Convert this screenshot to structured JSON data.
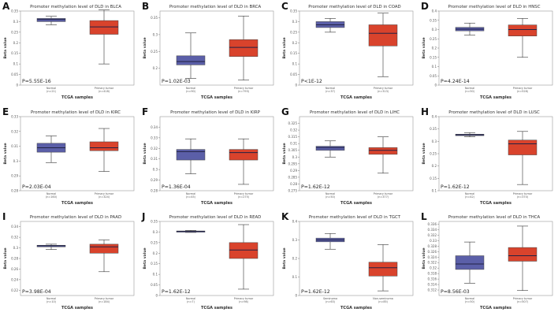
{
  "figure": {
    "normal_color": "#5b5fa8",
    "tumor_color": "#d9432c",
    "median_color": "#222244"
  },
  "chart_data": [
    {
      "type": "boxplot",
      "letter": "A",
      "title": "Promoter methylation level of DLD in BLCA",
      "xlabel": "TCGA samples",
      "ylabel": "Beta value",
      "pvalue": "P=5.55E-16",
      "ylim": [
        0,
        0.35
      ],
      "yticks": [
        "0",
        "0.05",
        "0.1",
        "0.15",
        "0.2",
        "0.25",
        "0.3",
        "0.35"
      ],
      "yticks_values": [
        0,
        0.05,
        0.1,
        0.15,
        0.2,
        0.25,
        0.3,
        0.35
      ],
      "groups": [
        {
          "name": "Normal",
          "n": "(n=21)",
          "min": 0.285,
          "q1": 0.3,
          "median": 0.31,
          "q3": 0.315,
          "max": 0.325
        },
        {
          "name": "Primary tumor",
          "n": "(n=418)",
          "min": 0.1,
          "q1": 0.24,
          "median": 0.275,
          "q3": 0.305,
          "max": 0.355
        }
      ]
    },
    {
      "type": "boxplot",
      "letter": "B",
      "title": "Promoter methylation level of DLD in BRCA",
      "xlabel": "TCGA samples",
      "ylabel": "Beta value",
      "pvalue": "P=1.02E-03",
      "ylim": [
        0.15,
        0.37
      ],
      "yticks": [
        "0.2",
        "0.25",
        "0.3",
        "0.35"
      ],
      "yticks_values": [
        0.2,
        0.25,
        0.3,
        0.35
      ],
      "groups": [
        {
          "name": "Normal",
          "n": "(n=90)",
          "min": 0.17,
          "q1": 0.21,
          "median": 0.22,
          "q3": 0.237,
          "max": 0.305
        },
        {
          "name": "Primary tumor",
          "n": "(n=793)",
          "min": 0.165,
          "q1": 0.235,
          "median": 0.262,
          "q3": 0.285,
          "max": 0.355
        }
      ]
    },
    {
      "type": "boxplot",
      "letter": "C",
      "title": "Promoter methylation level of DLD in COAD",
      "xlabel": "TCGA samples",
      "ylabel": "Beta value",
      "pvalue": "P<1E-12",
      "ylim": [
        0,
        0.35
      ],
      "yticks": [
        "0",
        "0.05",
        "0.1",
        "0.15",
        "0.2",
        "0.25",
        "0.3",
        "0.35"
      ],
      "yticks_values": [
        0,
        0.05,
        0.1,
        0.15,
        0.2,
        0.25,
        0.3,
        0.35
      ],
      "groups": [
        {
          "name": "Normal",
          "n": "(n=37)",
          "min": 0.25,
          "q1": 0.272,
          "median": 0.285,
          "q3": 0.3,
          "max": 0.315
        },
        {
          "name": "Primary tumor",
          "n": "(n=313)",
          "min": 0.04,
          "q1": 0.185,
          "median": 0.245,
          "q3": 0.285,
          "max": 0.34
        }
      ]
    },
    {
      "type": "boxplot",
      "letter": "D",
      "title": "Promoter methylation level of DLD in HNSC",
      "xlabel": "TCGA samples",
      "ylabel": "Beta value",
      "pvalue": "P=4.24E-14",
      "ylim": [
        0,
        0.4
      ],
      "yticks": [
        "0",
        "0.05",
        "0.1",
        "0.15",
        "0.2",
        "0.25",
        "0.3",
        "0.35",
        "0.4"
      ],
      "yticks_values": [
        0,
        0.05,
        0.1,
        0.15,
        0.2,
        0.25,
        0.3,
        0.35,
        0.4
      ],
      "groups": [
        {
          "name": "Normal",
          "n": "(n=50)",
          "min": 0.27,
          "q1": 0.293,
          "median": 0.302,
          "q3": 0.312,
          "max": 0.335
        },
        {
          "name": "Primary tumor",
          "n": "(n=528)",
          "min": 0.15,
          "q1": 0.265,
          "median": 0.3,
          "q3": 0.325,
          "max": 0.36
        }
      ]
    },
    {
      "type": "boxplot",
      "letter": "E",
      "title": "Promoter methylation level of DLD in KIRC",
      "xlabel": "TCGA samples",
      "ylabel": "Beta value",
      "pvalue": "P=2.03E-04",
      "ylim": [
        0.28,
        0.33
      ],
      "yticks": [
        "0.28",
        "0.29",
        "0.3",
        "0.31",
        "0.32",
        "0.33"
      ],
      "yticks_values": [
        0.28,
        0.29,
        0.3,
        0.31,
        0.32,
        0.33
      ],
      "groups": [
        {
          "name": "Normal",
          "n": "(n=160)",
          "min": 0.299,
          "q1": 0.306,
          "median": 0.309,
          "q3": 0.312,
          "max": 0.317
        },
        {
          "name": "Primary tumor",
          "n": "(n=324)",
          "min": 0.293,
          "q1": 0.307,
          "median": 0.309,
          "q3": 0.313,
          "max": 0.322
        }
      ]
    },
    {
      "type": "boxplot",
      "letter": "F",
      "title": "Promoter methylation level of DLD in KIRP",
      "xlabel": "TCGA samples",
      "ylabel": "Beta value",
      "pvalue": "P=1.36E-04",
      "ylim": [
        0.28,
        0.35
      ],
      "yticks": [
        "0.28",
        "0.29",
        "0.3",
        "0.31",
        "0.32",
        "0.33",
        "0.34"
      ],
      "yticks_values": [
        0.28,
        0.29,
        0.3,
        0.31,
        0.32,
        0.33,
        0.34
      ],
      "groups": [
        {
          "name": "Normal",
          "n": "(n=45)",
          "min": 0.296,
          "q1": 0.309,
          "median": 0.317,
          "q3": 0.319,
          "max": 0.329
        },
        {
          "name": "Primary tumor",
          "n": "(n=275)",
          "min": 0.286,
          "q1": 0.309,
          "median": 0.316,
          "q3": 0.319,
          "max": 0.329
        }
      ]
    },
    {
      "type": "boxplot",
      "letter": "G",
      "title": "Promoter methylation level of DLD in LIHC",
      "xlabel": "TCGA samples",
      "ylabel": "Beta value",
      "pvalue": "P=1.62E-12",
      "ylim": [
        0.275,
        0.33
      ],
      "yticks": [
        "0.275",
        "0.28",
        "0.285",
        "0.29",
        "0.295",
        "0.3",
        "0.305",
        "0.31",
        "0.315",
        "0.32",
        "0.325"
      ],
      "yticks_values": [
        0.275,
        0.28,
        0.285,
        0.29,
        0.295,
        0.3,
        0.305,
        0.31,
        0.315,
        0.32,
        0.325
      ],
      "groups": [
        {
          "name": "Normal",
          "n": "(n=50)",
          "min": 0.3,
          "q1": 0.305,
          "median": 0.307,
          "q3": 0.308,
          "max": 0.312
        },
        {
          "name": "Primary tumor",
          "n": "(n=377)",
          "min": 0.288,
          "q1": 0.302,
          "median": 0.305,
          "q3": 0.307,
          "max": 0.315
        }
      ]
    },
    {
      "type": "boxplot",
      "letter": "H",
      "title": "Promoter methylation level of DLD in LUSC",
      "xlabel": "TCGA samples",
      "ylabel": "Beta value",
      "pvalue": "P=1.62E-12",
      "ylim": [
        0.1,
        0.4
      ],
      "yticks": [
        "0.1",
        "0.15",
        "0.2",
        "0.25",
        "0.3",
        "0.35",
        "0.4"
      ],
      "yticks_values": [
        0.1,
        0.15,
        0.2,
        0.25,
        0.3,
        0.35,
        0.4
      ],
      "groups": [
        {
          "name": "Normal",
          "n": "(n=42)",
          "min": 0.318,
          "q1": 0.323,
          "median": 0.326,
          "q3": 0.329,
          "max": 0.335
        },
        {
          "name": "Primary tumor",
          "n": "(n=370)",
          "min": 0.125,
          "q1": 0.245,
          "median": 0.29,
          "q3": 0.305,
          "max": 0.34
        }
      ]
    },
    {
      "type": "boxplot",
      "letter": "I",
      "title": "Promoter methylation level of DLD in PAAD",
      "xlabel": "TCGA samples",
      "ylabel": "Beta value",
      "pvalue": "P=3.98E-04",
      "ylim": [
        0.21,
        0.35
      ],
      "yticks": [
        "0.22",
        "0.24",
        "0.26",
        "0.28",
        "0.3",
        "0.32",
        "0.34"
      ],
      "yticks_values": [
        0.22,
        0.24,
        0.26,
        0.28,
        0.3,
        0.32,
        0.34
      ],
      "groups": [
        {
          "name": "Normal",
          "n": "(n=10)",
          "min": 0.297,
          "q1": 0.302,
          "median": 0.304,
          "q3": 0.305,
          "max": 0.307
        },
        {
          "name": "Primary tumor",
          "n": "(n=184)",
          "min": 0.255,
          "q1": 0.29,
          "median": 0.302,
          "q3": 0.307,
          "max": 0.315
        }
      ]
    },
    {
      "type": "boxplot",
      "letter": "J",
      "title": "Promoter methylation level of DLD in READ",
      "xlabel": "TCGA samples",
      "ylabel": "Beta value",
      "pvalue": "P=1.62E-12",
      "ylim": [
        0,
        0.35
      ],
      "yticks": [
        "0",
        "0.05",
        "0.1",
        "0.15",
        "0.2",
        "0.25",
        "0.3",
        "0.35"
      ],
      "yticks_values": [
        0,
        0.05,
        0.1,
        0.15,
        0.2,
        0.25,
        0.3,
        0.35
      ],
      "groups": [
        {
          "name": "Normal",
          "n": "(n=7)",
          "min": 0.298,
          "q1": 0.301,
          "median": 0.303,
          "q3": 0.305,
          "max": 0.308
        },
        {
          "name": "Primary tumor",
          "n": "(n=98)",
          "min": 0.03,
          "q1": 0.175,
          "median": 0.215,
          "q3": 0.25,
          "max": 0.335
        }
      ]
    },
    {
      "type": "boxplot",
      "letter": "K",
      "title": "Promoter methylation level of DLD in TGCT",
      "xlabel": "TCGA samples",
      "ylabel": "Beta value",
      "pvalue": "P=1.62E-12",
      "ylim": [
        0,
        0.4
      ],
      "yticks": [
        "0",
        "0.1",
        "0.2",
        "0.3",
        "0.4"
      ],
      "yticks_values": [
        0,
        0.1,
        0.2,
        0.3,
        0.4
      ],
      "groups": [
        {
          "name": "Seminoma",
          "n": "(n=63)",
          "min": 0.25,
          "q1": 0.29,
          "median": 0.3,
          "q3": 0.31,
          "max": 0.335
        },
        {
          "name": "Non-seminoma",
          "n": "(n=85)",
          "min": 0.025,
          "q1": 0.105,
          "median": 0.15,
          "q3": 0.18,
          "max": 0.275
        }
      ]
    },
    {
      "type": "boxplot",
      "letter": "L",
      "title": "Promoter methylation level of DLD in THCA",
      "xlabel": "TCGA samples",
      "ylabel": "Beta value",
      "pvalue": "P=8.56E-03",
      "ylim": [
        0.31,
        0.337
      ],
      "yticks": [
        "0.312",
        "0.314",
        "0.316",
        "0.318",
        "0.32",
        "0.322",
        "0.324",
        "0.326",
        "0.328",
        "0.33",
        "0.332",
        "0.334",
        "0.336"
      ],
      "yticks_values": [
        0.312,
        0.314,
        0.316,
        0.318,
        0.32,
        0.322,
        0.324,
        0.326,
        0.328,
        0.33,
        0.332,
        0.334,
        0.336
      ],
      "groups": [
        {
          "name": "Normal",
          "n": "(n=50)",
          "min": 0.3145,
          "q1": 0.3195,
          "median": 0.3215,
          "q3": 0.3245,
          "max": 0.3295
        },
        {
          "name": "Primary tumor",
          "n": "(n=507)",
          "min": 0.3118,
          "q1": 0.3225,
          "median": 0.3245,
          "q3": 0.3275,
          "max": 0.3353
        }
      ]
    }
  ]
}
